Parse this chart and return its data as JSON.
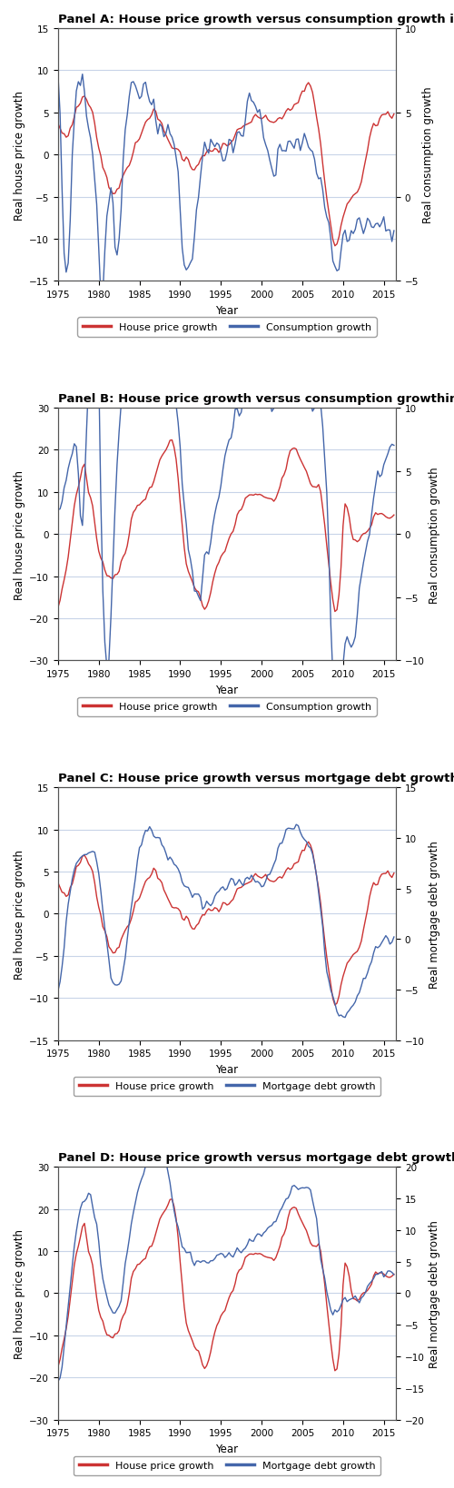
{
  "panels": [
    {
      "title": "Panel A: House price growth versus consumption growth in the US",
      "ylabel_left": "Real house price growth",
      "ylabel_right": "Real consumption growth",
      "xlabel": "Year",
      "legend": [
        "House price growth",
        "Consumption growth"
      ],
      "line_colors": [
        "#cc3333",
        "#4466aa"
      ],
      "ylim_left": [
        -15,
        15
      ],
      "ylim_right": [
        -5,
        10
      ],
      "yticks_left": [
        -15,
        -10,
        -5,
        0,
        5,
        10,
        15
      ],
      "yticks_right": [
        -5,
        0,
        5,
        10
      ],
      "xlim": [
        1975,
        2016.5
      ],
      "xticks": [
        1975,
        1980,
        1985,
        1990,
        1995,
        2000,
        2005,
        2010,
        2015
      ]
    },
    {
      "title": "Panel B: House price growth versus consumption growthin the UK",
      "ylabel_left": "Real house price growth",
      "ylabel_right": "Real consumption growth",
      "xlabel": "Year",
      "legend": [
        "House price growth",
        "Consumption growth"
      ],
      "line_colors": [
        "#cc3333",
        "#4466aa"
      ],
      "ylim_left": [
        -30,
        30
      ],
      "ylim_right": [
        -10,
        10
      ],
      "yticks_left": [
        -30,
        -20,
        -10,
        0,
        10,
        20,
        30
      ],
      "yticks_right": [
        -10,
        -5,
        0,
        5,
        10
      ],
      "xlim": [
        1975,
        2016.5
      ],
      "xticks": [
        1975,
        1980,
        1985,
        1990,
        1995,
        2000,
        2005,
        2010,
        2015
      ]
    },
    {
      "title": "Panel C: House price growth versus mortgage debt growth in the US",
      "ylabel_left": "Real house price growth",
      "ylabel_right": "Real mortgage debt growth",
      "xlabel": "Year",
      "legend": [
        "House price growth",
        "Mortgage debt growth"
      ],
      "line_colors": [
        "#cc3333",
        "#4466aa"
      ],
      "ylim_left": [
        -15,
        15
      ],
      "ylim_right": [
        -10,
        15
      ],
      "yticks_left": [
        -15,
        -10,
        -5,
        0,
        5,
        10,
        15
      ],
      "yticks_right": [
        -10,
        -5,
        0,
        5,
        10,
        15
      ],
      "xlim": [
        1975,
        2016.5
      ],
      "xticks": [
        1975,
        1980,
        1985,
        1990,
        1995,
        2000,
        2005,
        2010,
        2015
      ]
    },
    {
      "title": "Panel D: House price growth versus mortgage debt growth in the UK",
      "ylabel_left": "Real house price growth",
      "ylabel_right": "Real mortgage debt growth",
      "xlabel": "Year",
      "legend": [
        "House price growth",
        "Mortgage debt growth"
      ],
      "line_colors": [
        "#cc3333",
        "#4466aa"
      ],
      "ylim_left": [
        -30,
        30
      ],
      "ylim_right": [
        -20,
        20
      ],
      "yticks_left": [
        -30,
        -20,
        -10,
        0,
        10,
        20,
        30
      ],
      "yticks_right": [
        -20,
        -15,
        -10,
        -5,
        0,
        5,
        10,
        15,
        20
      ],
      "xlim": [
        1975,
        2016.5
      ],
      "xticks": [
        1975,
        1980,
        1985,
        1990,
        1995,
        2000,
        2005,
        2010,
        2015
      ]
    }
  ],
  "background_color": "#ffffff",
  "grid_color": "#c8d4e8",
  "line_width": 1.0,
  "font_size": 8.5,
  "title_font_size": 9.5
}
